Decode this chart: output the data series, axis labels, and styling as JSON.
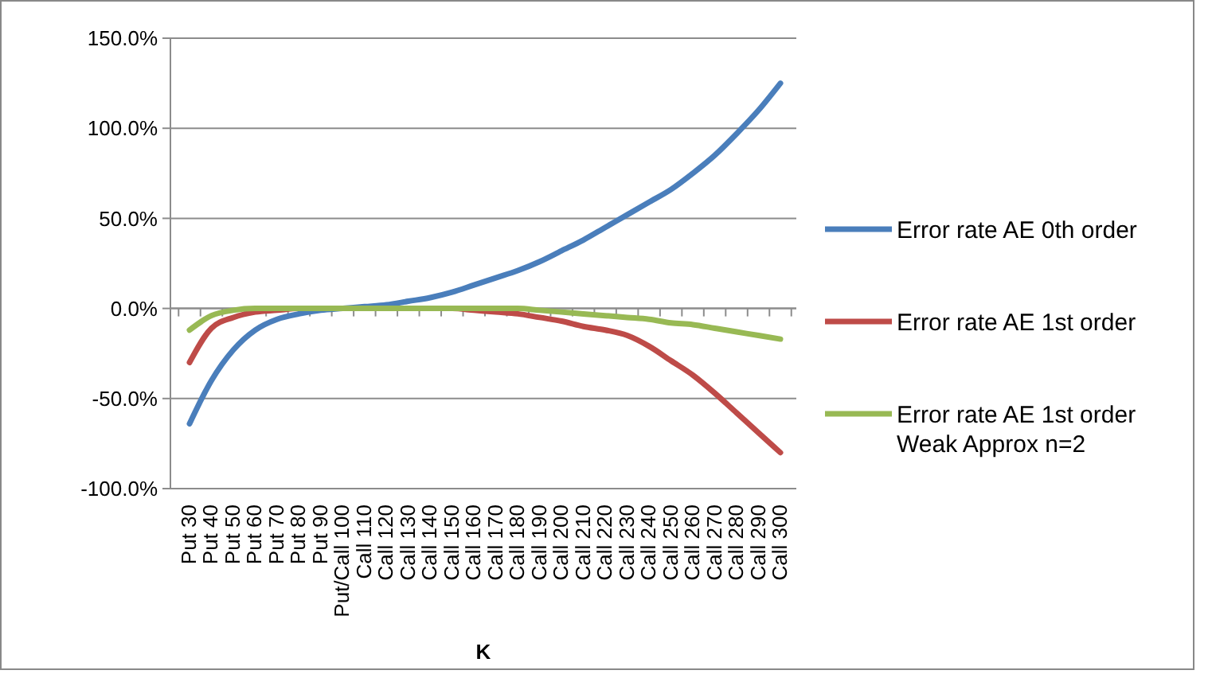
{
  "chart_data": {
    "type": "line",
    "xlabel": "K",
    "categories": [
      "Put 30",
      "Put 40",
      "Put 50",
      "Put 60",
      "Put 70",
      "Put 80",
      "Put 90",
      "Put/Call 100",
      "Call 110",
      "Call 120",
      "Call 130",
      "Call 140",
      "Call 150",
      "Call 160",
      "Call 170",
      "Call 180",
      "Call 190",
      "Call 200",
      "Call 210",
      "Call 220",
      "Call 230",
      "Call 240",
      "Call 250",
      "Call 260",
      "Call 270",
      "Call 280",
      "Call 290",
      "Call 300"
    ],
    "series": [
      {
        "name": "Error rate AE 0th order",
        "color": "#4a7ebb",
        "values": [
          -64,
          -40,
          -23,
          -12,
          -6,
          -3,
          -1,
          0,
          1,
          2,
          4,
          6,
          9,
          13,
          17,
          21,
          26,
          32,
          38,
          45,
          52,
          59,
          66,
          75,
          85,
          97,
          110,
          125
        ]
      },
      {
        "name": "Error rate AE 1st order",
        "color": "#be4b48",
        "values": [
          -30,
          -11,
          -5,
          -2,
          -1,
          0,
          0,
          0,
          0,
          0,
          0,
          0,
          0,
          -1,
          -2,
          -3,
          -5,
          -7,
          -10,
          -12,
          -15,
          -21,
          -29,
          -37,
          -47,
          -58,
          -69,
          -80
        ]
      },
      {
        "name": "Error rate AE 1st order Weak Approx n=2",
        "color": "#98b954",
        "values": [
          -12,
          -4,
          -1,
          0,
          0,
          0,
          0,
          0,
          0,
          0,
          0,
          0,
          0,
          0,
          0,
          0,
          -1,
          -2,
          -3,
          -4,
          -5,
          -6,
          -8,
          -9,
          -11,
          -13,
          -15,
          -17
        ]
      }
    ],
    "ylim": [
      -100,
      150
    ],
    "yticks": [
      {
        "value": -100,
        "label": "-100.0%"
      },
      {
        "value": -50,
        "label": "-50.0%"
      },
      {
        "value": 0,
        "label": "0.0%"
      },
      {
        "value": 50,
        "label": "50.0%"
      },
      {
        "value": 100,
        "label": "100.0%"
      },
      {
        "value": 150,
        "label": "150.0%"
      }
    ],
    "grid": "y",
    "legend": "right",
    "marker": "none",
    "line_style": "solid"
  }
}
